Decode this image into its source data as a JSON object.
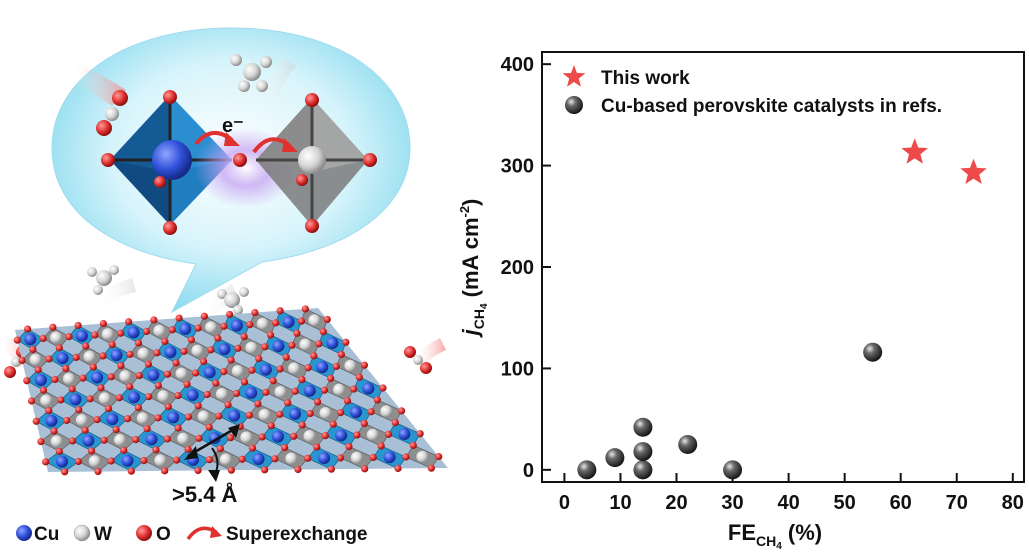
{
  "scene": {
    "electron_label": "e⁻",
    "distance_label": ">5.4 Å",
    "legend": {
      "cu_label": "Cu",
      "w_label": "W",
      "o_label": "O",
      "superexchange_label": "Superexchange"
    },
    "colors": {
      "cu_atom": "#2f4fd8",
      "w_atom": "#cfcfcf",
      "o_atom": "#e0312f",
      "cu_octahedron": "#1f93cf",
      "w_octahedron": "#8a8a8a",
      "bubble": "#9fe3f3",
      "arrow": "#e0312f",
      "glow": "#b890ee"
    }
  },
  "chart_data": {
    "type": "scatter",
    "xlabel_main": "FE",
    "xlabel_sub": "CH",
    "xlabel_subsub": "4",
    "xlabel_tail": " (%)",
    "ylabel_main": "j",
    "ylabel_sub": "CH",
    "ylabel_subsub": "4",
    "ylabel_tail": " (mA cm",
    "ylabel_sup": "-2",
    "ylabel_close": ")",
    "xlim": [
      -4,
      82
    ],
    "ylim": [
      -12,
      412
    ],
    "xticks": [
      0,
      10,
      20,
      30,
      40,
      50,
      60,
      70,
      80
    ],
    "yticks": [
      0,
      100,
      200,
      300,
      400
    ],
    "legend_position": "top-left",
    "series": [
      {
        "name": "This work",
        "marker": "star",
        "color": "#ef4a4a",
        "points": [
          [
            62.5,
            313
          ],
          [
            73,
            293
          ]
        ]
      },
      {
        "name": "Cu-based perovskite catalysts in refs.",
        "marker": "sphere",
        "color": "#3a3a3a",
        "points": [
          [
            4,
            0
          ],
          [
            9,
            12
          ],
          [
            14,
            0
          ],
          [
            14,
            18
          ],
          [
            14,
            42
          ],
          [
            22,
            25
          ],
          [
            30,
            0
          ],
          [
            55,
            116
          ]
        ]
      }
    ]
  }
}
